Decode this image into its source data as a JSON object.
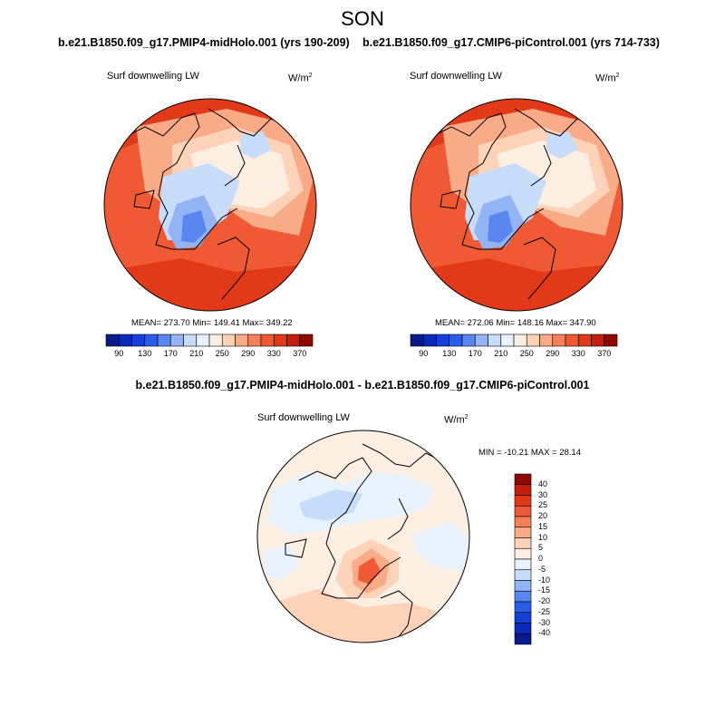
{
  "season": "SON",
  "left_panel": {
    "case_title": "b.e21.B1850.f09_g17.PMIP4-midHolo.001 (yrs 190-209)",
    "variable": "Surf downwelling LW",
    "unit": "W/m",
    "unit_sup": "2",
    "stats": "MEAN= 273.70  Min= 149.41  Max= 349.22"
  },
  "right_panel": {
    "case_title": "b.e21.B1850.f09_g17.CMIP6-piControl.001 (yrs 714-733)",
    "variable": "Surf downwelling LW",
    "unit": "W/m",
    "unit_sup": "2",
    "stats": "MEAN= 272.06  Min= 148.16  Max= 347.90"
  },
  "top_colorbar": {
    "labels": [
      "90",
      "130",
      "170",
      "210",
      "250",
      "290",
      "330",
      "370"
    ],
    "colors": [
      "#0a1a8c",
      "#0c2ab8",
      "#1440d8",
      "#2a5ee8",
      "#5a86f0",
      "#92b4f4",
      "#c6dcf8",
      "#e8f2fc",
      "#fdeee2",
      "#fcd2b8",
      "#f9ab88",
      "#f5805a",
      "#ef5a34",
      "#e23a18",
      "#c61e0a",
      "#8e0a00"
    ]
  },
  "diff_panel": {
    "title": "b.e21.B1850.f09_g17.PMIP4-midHolo.001 - b.e21.B1850.f09_g17.CMIP6-piControl.001",
    "variable": "Surf downwelling LW",
    "unit": "W/m",
    "unit_sup": "2",
    "minmax": "MIN = -10.21 MAX =  28.14"
  },
  "diff_colorbar": {
    "labels": [
      "40",
      "30",
      "25",
      "20",
      "15",
      "10",
      "5",
      "0",
      "-5",
      "-10",
      "-15",
      "-20",
      "-25",
      "-30",
      "-40"
    ],
    "colors": [
      "#8e0a00",
      "#c61e0a",
      "#e23a18",
      "#ef5a34",
      "#f5805a",
      "#f9ab88",
      "#fcd2b8",
      "#fdeee2",
      "#e8f2fc",
      "#c6dcf8",
      "#92b4f4",
      "#5a86f0",
      "#2a5ee8",
      "#1440d8",
      "#0c2ab8",
      "#0a1a8c"
    ]
  }
}
